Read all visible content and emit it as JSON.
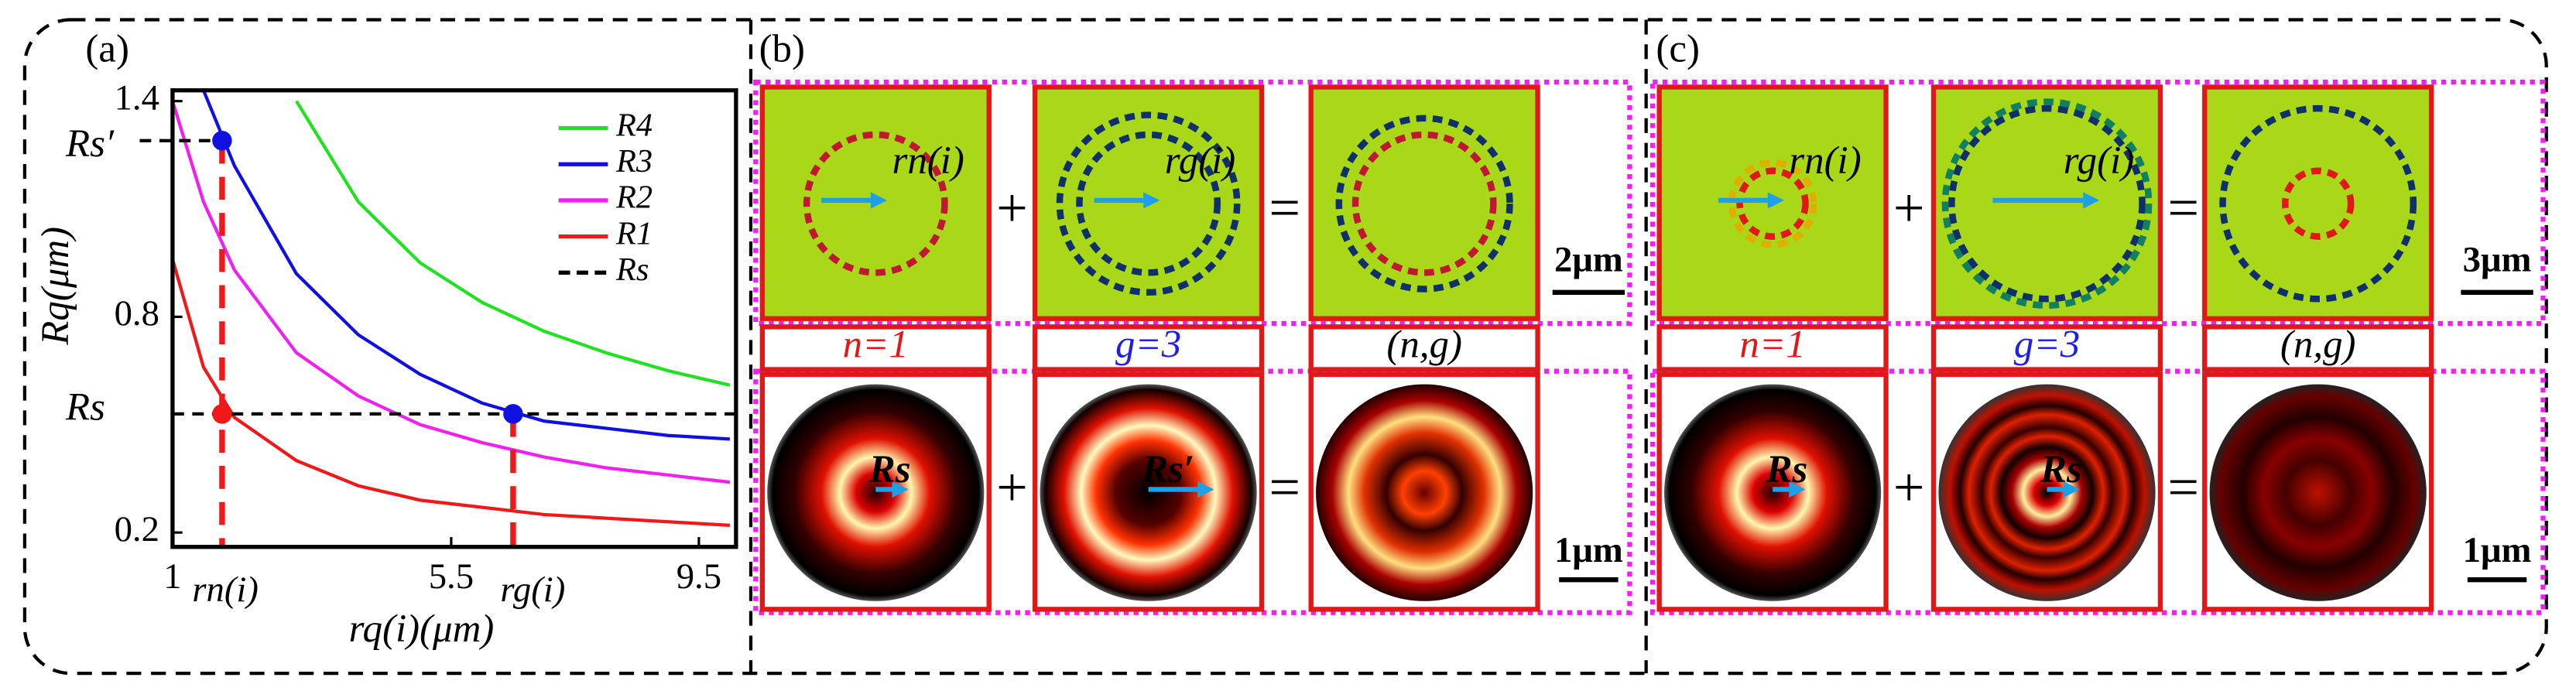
{
  "chart_data": {
    "type": "line",
    "panel_label": "(a)",
    "xlabel": "rq(i)(μm)",
    "ylabel": "Rq(μm)",
    "x": [
      1,
      1.5,
      2,
      3,
      4,
      5,
      6,
      7,
      8,
      9,
      10
    ],
    "series": [
      {
        "name": "R4",
        "color": "#22e022",
        "values": [
          null,
          null,
          null,
          1.4,
          1.12,
          0.95,
          0.84,
          0.76,
          0.7,
          0.65,
          0.61
        ]
      },
      {
        "name": "R3",
        "color": "#1010e0",
        "values": [
          null,
          1.43,
          1.22,
          0.92,
          0.75,
          0.64,
          0.56,
          0.51,
          0.49,
          0.47,
          0.46
        ]
      },
      {
        "name": "R2",
        "color": "#f020f0",
        "values": [
          1.4,
          1.12,
          0.93,
          0.7,
          0.58,
          0.5,
          0.45,
          0.41,
          0.38,
          0.36,
          0.34
        ]
      },
      {
        "name": "R1",
        "color": "#f01818",
        "values": [
          0.96,
          0.66,
          0.52,
          0.4,
          0.33,
          0.29,
          0.27,
          0.25,
          0.24,
          0.23,
          0.22
        ]
      }
    ],
    "reference_lines": [
      {
        "label": "Rs",
        "value": 0.53
      },
      {
        "label": "Rs′",
        "value": 1.29
      }
    ],
    "vertical_markers": [
      {
        "label": "rn(i)",
        "x": 1.8
      },
      {
        "label": "rg(i)",
        "x": 6.5
      }
    ],
    "xlim": [
      1,
      10.1
    ],
    "xticks": [
      1,
      5.5,
      9.5
    ],
    "ylim": [
      0.16,
      1.43
    ],
    "yticks": [
      0.2,
      0.8,
      1.4
    ]
  },
  "panel_b": {
    "label": "(b)",
    "top_annotations": [
      "rn(i)",
      "rg(i)"
    ],
    "captions": [
      "n=1",
      "g=3",
      "(n,g)"
    ],
    "bottom_annotations": [
      "Rs",
      "Rs′"
    ],
    "scale_top": "2μm",
    "scale_bottom": "1μm",
    "plus": "+",
    "equals": "="
  },
  "panel_c": {
    "label": "(c)",
    "top_annotations": [
      "rn(i)",
      "rg(i)"
    ],
    "captions": [
      "n=1",
      "g=3",
      "(n,g)"
    ],
    "bottom_annotations": [
      "Rs",
      "Rs"
    ],
    "scale_top": "3μm",
    "scale_bottom": "1μm",
    "plus": "+",
    "equals": "="
  }
}
